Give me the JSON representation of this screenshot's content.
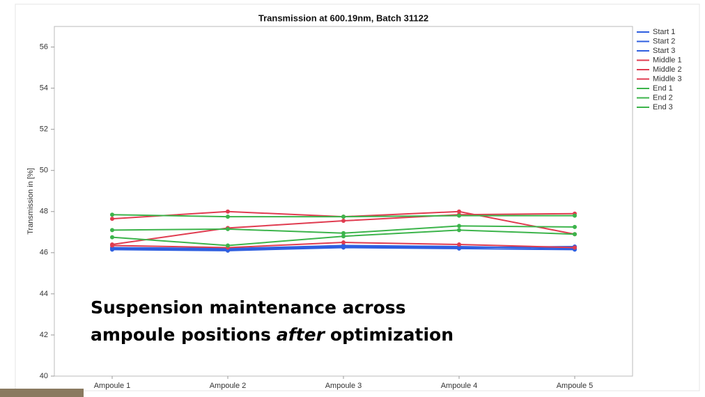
{
  "chart_data": {
    "type": "line",
    "title": "Transmission at 600.19nm, Batch 31122",
    "y_label": "Transmission in [%]",
    "categories": [
      "Ampoule 1",
      "Ampoule 2",
      "Ampoule 3",
      "Ampoule 4",
      "Ampoule 5"
    ],
    "ylim": [
      40,
      57
    ],
    "yticks": [
      40,
      42,
      44,
      46,
      48,
      50,
      52,
      54,
      56
    ],
    "grid": false,
    "legend": "right",
    "series": [
      {
        "name": "Start 1",
        "color": "#2f5fe0",
        "values": [
          46.15,
          46.1,
          46.25,
          46.2,
          46.15
        ]
      },
      {
        "name": "Start 2",
        "color": "#2f5fe0",
        "values": [
          46.2,
          46.15,
          46.3,
          46.25,
          46.3
        ]
      },
      {
        "name": "Start 3",
        "color": "#2f5fe0",
        "values": [
          46.25,
          46.2,
          46.35,
          46.3,
          46.2
        ]
      },
      {
        "name": "Middle 1",
        "color": "#e03c50",
        "values": [
          47.65,
          48.0,
          47.75,
          48.0,
          46.9
        ]
      },
      {
        "name": "Middle 2",
        "color": "#e03c50",
        "values": [
          46.4,
          47.2,
          47.55,
          47.85,
          47.9
        ]
      },
      {
        "name": "Middle 3",
        "color": "#e03c50",
        "values": [
          46.35,
          46.25,
          46.5,
          46.4,
          46.25
        ]
      },
      {
        "name": "End 1",
        "color": "#3cb44b",
        "values": [
          47.85,
          47.75,
          47.75,
          47.8,
          47.8
        ]
      },
      {
        "name": "End 2",
        "color": "#3cb44b",
        "values": [
          47.1,
          47.15,
          46.95,
          47.3,
          47.25
        ]
      },
      {
        "name": "End 3",
        "color": "#3cb44b",
        "values": [
          46.75,
          46.35,
          46.8,
          47.1,
          46.9
        ]
      }
    ],
    "annotation": {
      "line1": "Suspension maintenance across",
      "line2": [
        "ampoule positions",
        "after",
        "optimization"
      ]
    }
  }
}
